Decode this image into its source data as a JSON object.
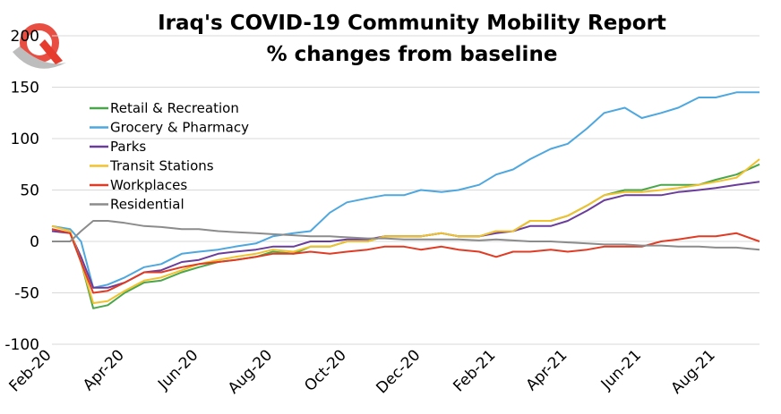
{
  "chart_data": {
    "type": "line",
    "title": "Iraq's COVID-19 Community Mobility Report",
    "subtitle": "% changes from baseline",
    "xlabel": "",
    "ylabel": "",
    "ylim": [
      -100,
      200
    ],
    "yticks": [
      200,
      150,
      100,
      50,
      0,
      -50,
      -100
    ],
    "x_tick_labels": [
      "Feb-20",
      "Apr-20",
      "Jun-20",
      "Aug-20",
      "Oct-20",
      "Dec-20",
      "Feb-21",
      "Apr-21",
      "Jun-21",
      "Aug-21"
    ],
    "x_tick_dates": [
      "2020-02-15",
      "2020-04-15",
      "2020-06-15",
      "2020-08-15",
      "2020-10-15",
      "2020-12-15",
      "2021-02-15",
      "2021-04-15",
      "2021-06-15",
      "2021-08-15"
    ],
    "x_range": [
      "2020-02-15",
      "2021-09-20"
    ],
    "grid": "horizontal",
    "legend_position": "top-left",
    "series": [
      {
        "name": "Retail & Recreation",
        "color": "#4aa64a",
        "x": [
          "2020-02-15",
          "2020-03-01",
          "2020-03-10",
          "2020-03-20",
          "2020-04-01",
          "2020-04-15",
          "2020-05-01",
          "2020-05-15",
          "2020-06-01",
          "2020-06-15",
          "2020-07-01",
          "2020-07-15",
          "2020-08-01",
          "2020-08-15",
          "2020-09-01",
          "2020-09-15",
          "2020-10-01",
          "2020-10-15",
          "2020-11-01",
          "2020-11-15",
          "2020-12-01",
          "2020-12-15",
          "2021-01-01",
          "2021-01-15",
          "2021-02-01",
          "2021-02-15",
          "2021-03-01",
          "2021-03-15",
          "2021-04-01",
          "2021-04-15",
          "2021-05-01",
          "2021-05-15",
          "2021-06-01",
          "2021-06-15",
          "2021-07-01",
          "2021-07-15",
          "2021-08-01",
          "2021-08-15",
          "2021-09-01",
          "2021-09-20"
        ],
        "values": [
          12,
          8,
          -20,
          -65,
          -62,
          -50,
          -40,
          -38,
          -30,
          -25,
          -20,
          -18,
          -15,
          -10,
          -12,
          -5,
          -5,
          0,
          0,
          5,
          5,
          5,
          8,
          5,
          5,
          10,
          10,
          20,
          20,
          25,
          35,
          45,
          50,
          50,
          55,
          55,
          55,
          60,
          65,
          75
        ]
      },
      {
        "name": "Grocery & Pharmacy",
        "color": "#4ea7de",
        "x": [
          "2020-02-15",
          "2020-03-01",
          "2020-03-10",
          "2020-03-20",
          "2020-04-01",
          "2020-04-15",
          "2020-05-01",
          "2020-05-15",
          "2020-06-01",
          "2020-06-15",
          "2020-07-01",
          "2020-07-15",
          "2020-08-01",
          "2020-08-15",
          "2020-09-01",
          "2020-09-15",
          "2020-10-01",
          "2020-10-15",
          "2020-11-01",
          "2020-11-15",
          "2020-12-01",
          "2020-12-15",
          "2021-01-01",
          "2021-01-15",
          "2021-02-01",
          "2021-02-15",
          "2021-03-01",
          "2021-03-15",
          "2021-04-01",
          "2021-04-15",
          "2021-05-01",
          "2021-05-15",
          "2021-06-01",
          "2021-06-15",
          "2021-07-01",
          "2021-07-15",
          "2021-08-01",
          "2021-08-15",
          "2021-09-01",
          "2021-09-20"
        ],
        "values": [
          15,
          12,
          0,
          -45,
          -42,
          -35,
          -25,
          -22,
          -12,
          -10,
          -8,
          -5,
          -2,
          5,
          8,
          10,
          28,
          38,
          42,
          45,
          45,
          50,
          48,
          50,
          55,
          65,
          70,
          80,
          90,
          95,
          110,
          125,
          130,
          120,
          125,
          130,
          140,
          140,
          145,
          145
        ]
      },
      {
        "name": "Parks",
        "color": "#6a3d9a",
        "x": [
          "2020-02-15",
          "2020-03-01",
          "2020-03-10",
          "2020-03-20",
          "2020-04-01",
          "2020-04-15",
          "2020-05-01",
          "2020-05-15",
          "2020-06-01",
          "2020-06-15",
          "2020-07-01",
          "2020-07-15",
          "2020-08-01",
          "2020-08-15",
          "2020-09-01",
          "2020-09-15",
          "2020-10-01",
          "2020-10-15",
          "2020-11-01",
          "2020-11-15",
          "2020-12-01",
          "2020-12-15",
          "2021-01-01",
          "2021-01-15",
          "2021-02-01",
          "2021-02-15",
          "2021-03-01",
          "2021-03-15",
          "2021-04-01",
          "2021-04-15",
          "2021-05-01",
          "2021-05-15",
          "2021-06-01",
          "2021-06-15",
          "2021-07-01",
          "2021-07-15",
          "2021-08-01",
          "2021-08-15",
          "2021-09-01",
          "2021-09-20"
        ],
        "values": [
          10,
          8,
          -15,
          -45,
          -45,
          -40,
          -30,
          -28,
          -20,
          -18,
          -12,
          -10,
          -8,
          -5,
          -5,
          0,
          0,
          2,
          2,
          5,
          5,
          5,
          8,
          5,
          5,
          8,
          10,
          15,
          15,
          20,
          30,
          40,
          45,
          45,
          45,
          48,
          50,
          52,
          55,
          58
        ]
      },
      {
        "name": "Transit Stations",
        "color": "#f2c12e",
        "x": [
          "2020-02-15",
          "2020-03-01",
          "2020-03-10",
          "2020-03-20",
          "2020-04-01",
          "2020-04-15",
          "2020-05-01",
          "2020-05-15",
          "2020-06-01",
          "2020-06-15",
          "2020-07-01",
          "2020-07-15",
          "2020-08-01",
          "2020-08-15",
          "2020-09-01",
          "2020-09-15",
          "2020-10-01",
          "2020-10-15",
          "2020-11-01",
          "2020-11-15",
          "2020-12-01",
          "2020-12-15",
          "2021-01-01",
          "2021-01-15",
          "2021-02-01",
          "2021-02-15",
          "2021-03-01",
          "2021-03-15",
          "2021-04-01",
          "2021-04-15",
          "2021-05-01",
          "2021-05-15",
          "2021-06-01",
          "2021-06-15",
          "2021-07-01",
          "2021-07-15",
          "2021-08-01",
          "2021-08-15",
          "2021-09-01",
          "2021-09-20"
        ],
        "values": [
          15,
          10,
          -20,
          -60,
          -58,
          -48,
          -38,
          -35,
          -28,
          -22,
          -18,
          -15,
          -12,
          -8,
          -10,
          -5,
          -5,
          0,
          0,
          5,
          5,
          5,
          8,
          5,
          5,
          10,
          10,
          20,
          20,
          25,
          35,
          45,
          48,
          48,
          50,
          52,
          55,
          58,
          62,
          80
        ]
      },
      {
        "name": "Workplaces",
        "color": "#e03b24",
        "x": [
          "2020-02-15",
          "2020-03-01",
          "2020-03-10",
          "2020-03-20",
          "2020-04-01",
          "2020-04-15",
          "2020-05-01",
          "2020-05-15",
          "2020-06-01",
          "2020-06-15",
          "2020-07-01",
          "2020-07-15",
          "2020-08-01",
          "2020-08-15",
          "2020-09-01",
          "2020-09-15",
          "2020-10-01",
          "2020-10-15",
          "2020-11-01",
          "2020-11-15",
          "2020-12-01",
          "2020-12-15",
          "2021-01-01",
          "2021-01-15",
          "2021-02-01",
          "2021-02-15",
          "2021-03-01",
          "2021-03-15",
          "2021-04-01",
          "2021-04-15",
          "2021-05-01",
          "2021-05-15",
          "2021-06-01",
          "2021-06-15",
          "2021-07-01",
          "2021-07-15",
          "2021-08-01",
          "2021-08-15",
          "2021-09-01",
          "2021-09-20"
        ],
        "values": [
          12,
          8,
          -20,
          -50,
          -48,
          -40,
          -30,
          -30,
          -25,
          -22,
          -20,
          -18,
          -15,
          -12,
          -12,
          -10,
          -12,
          -10,
          -8,
          -5,
          -5,
          -8,
          -5,
          -8,
          -10,
          -15,
          -10,
          -10,
          -8,
          -10,
          -8,
          -5,
          -5,
          -5,
          0,
          2,
          5,
          5,
          8,
          0
        ]
      },
      {
        "name": "Residential",
        "color": "#8c8c8c",
        "x": [
          "2020-02-15",
          "2020-03-01",
          "2020-03-10",
          "2020-03-20",
          "2020-04-01",
          "2020-04-15",
          "2020-05-01",
          "2020-05-15",
          "2020-06-01",
          "2020-06-15",
          "2020-07-01",
          "2020-07-15",
          "2020-08-01",
          "2020-08-15",
          "2020-09-01",
          "2020-09-15",
          "2020-10-01",
          "2020-10-15",
          "2020-11-01",
          "2020-11-15",
          "2020-12-01",
          "2020-12-15",
          "2021-01-01",
          "2021-01-15",
          "2021-02-01",
          "2021-02-15",
          "2021-03-01",
          "2021-03-15",
          "2021-04-01",
          "2021-04-15",
          "2021-05-01",
          "2021-05-15",
          "2021-06-01",
          "2021-06-15",
          "2021-07-01",
          "2021-07-15",
          "2021-08-01",
          "2021-08-15",
          "2021-09-01",
          "2021-09-20"
        ],
        "values": [
          0,
          0,
          10,
          20,
          20,
          18,
          15,
          14,
          12,
          12,
          10,
          9,
          8,
          7,
          6,
          5,
          5,
          4,
          3,
          3,
          2,
          2,
          2,
          2,
          1,
          2,
          1,
          0,
          0,
          -1,
          -2,
          -3,
          -3,
          -4,
          -4,
          -5,
          -5,
          -6,
          -6,
          -8
        ]
      }
    ]
  },
  "colors": {
    "grid": "#d9d9d9",
    "logo_red": "#e53c2e",
    "logo_silver": "#bdbdbd"
  }
}
